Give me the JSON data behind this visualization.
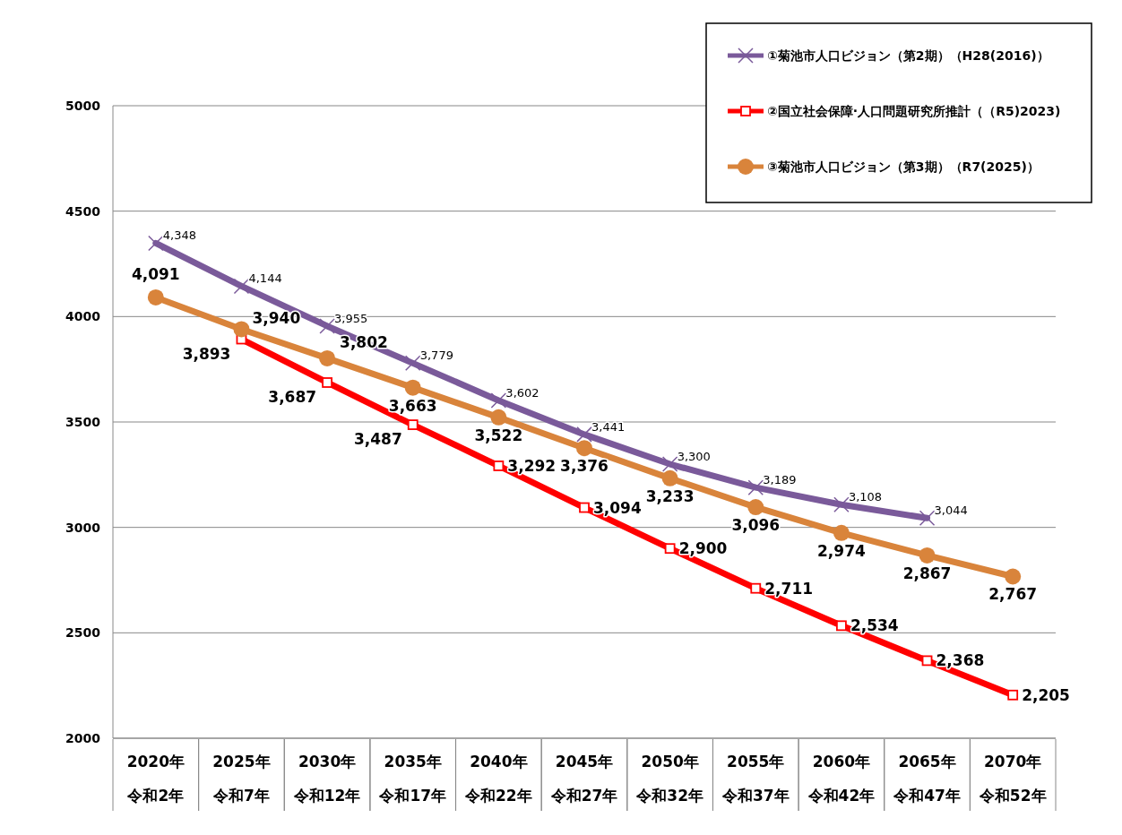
{
  "chart_data": {
    "type": "line",
    "categories": [
      "2020年令和2年",
      "2025年令和7年",
      "2030年令和12年",
      "2035年令和17年",
      "2040年令和22年",
      "2045年令和27年",
      "2050年令和32年",
      "2055年令和37年",
      "2060年令和42年",
      "2065年令和47年",
      "2070年令和52年"
    ],
    "series": [
      {
        "name": "①菊池市人口ビジョン（第2期）（H28(2016)）",
        "color": "#7a5a9a",
        "marker": "cross",
        "values": [
          4348,
          4144,
          3955,
          3779,
          3602,
          3441,
          3300,
          3189,
          3108,
          3044,
          null
        ],
        "value_labels": [
          "4,348",
          "4,144",
          "3,955",
          "3,779",
          "3,602",
          "3,441",
          "3,300",
          "3,189",
          "3,108",
          "3,044",
          null
        ]
      },
      {
        "name": "②国立社会保障·人口問題研究所推計（（R5)2023)",
        "color": "#ff0000",
        "marker": "square",
        "values": [
          null,
          3893,
          3687,
          3487,
          3292,
          3094,
          2900,
          2711,
          2534,
          2368,
          2205
        ],
        "value_labels": [
          null,
          "3,893",
          "3,687",
          "3,487",
          "3,292",
          "3,094",
          "2,900",
          "2,711",
          "2,534",
          "2,368",
          "2,205"
        ]
      },
      {
        "name": "③菊池市人口ビジョン（第3期）（R7(2025)）",
        "color": "#d9843b",
        "marker": "circle",
        "values": [
          4091,
          3940,
          3802,
          3663,
          3522,
          3376,
          3233,
          3096,
          2974,
          2867,
          2767
        ],
        "value_labels": [
          "4,091",
          "3,940",
          "3,802",
          "3,663",
          "3,522",
          "3,376",
          "3,233",
          "3,096",
          "2,974",
          "2,867",
          "2,767"
        ]
      }
    ],
    "ylim": [
      2000,
      5000
    ],
    "yticks": [
      2000,
      2500,
      3000,
      3500,
      4000,
      4500,
      5000
    ],
    "grid": "y",
    "legend": "top right"
  }
}
